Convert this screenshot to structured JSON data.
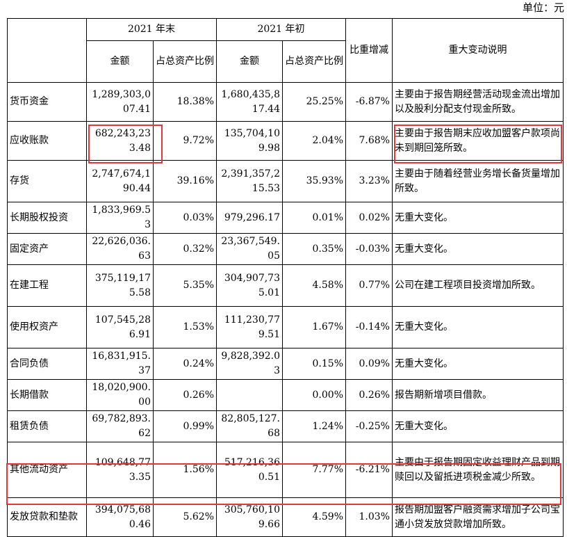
{
  "unit_label": "单位：元",
  "header": {
    "end_group": "2021 年末",
    "begin_group": "2021 年初",
    "amount": "金额",
    "ratio": "占总资产比例",
    "change": "比重增减",
    "note": "重大变动说明"
  },
  "rows": [
    {
      "item": "货币资金",
      "end_amount": "1,289,303,007.41",
      "end_ratio": "18.38%",
      "begin_amount": "1,680,435,817.44",
      "begin_ratio": "25.25%",
      "change": "-6.87%",
      "note": "主要由于报告期经营活动现金流出增加以及股利分配支付现金所致。"
    },
    {
      "item": "应收账款",
      "end_amount": "682,243,233.48",
      "end_ratio": "9.72%",
      "begin_amount": "135,704,109.98",
      "begin_ratio": "2.04%",
      "change": "7.68%",
      "note": "主要由于报告期末应收加盟客户款项尚未到期回笼所致。"
    },
    {
      "item": "存货",
      "end_amount": "2,747,674,190.44",
      "end_ratio": "39.16%",
      "begin_amount": "2,391,357,215.53",
      "begin_ratio": "35.93%",
      "change": "3.23%",
      "note": "主要由于随着经营业务增长备货量增加所致。"
    },
    {
      "item": "长期股权投资",
      "end_amount": "1,833,969.53",
      "end_ratio": "0.03%",
      "begin_amount": "979,296.17",
      "begin_ratio": "0.01%",
      "change": "0.02%",
      "note": "无重大变化。"
    },
    {
      "item": "固定资产",
      "end_amount": "22,626,036.63",
      "end_ratio": "0.32%",
      "begin_amount": "23,367,549.05",
      "begin_ratio": "0.35%",
      "change": "-0.03%",
      "note": "无重大变化。"
    },
    {
      "item": "在建工程",
      "end_amount": "375,119,175.58",
      "end_ratio": "5.35%",
      "begin_amount": "304,907,735.01",
      "begin_ratio": "4.58%",
      "change": "0.77%",
      "note": "公司在建工程项目投资增加所致。"
    },
    {
      "item": "使用权资产",
      "end_amount": "107,545,286.91",
      "end_ratio": "1.53%",
      "begin_amount": "111,230,779.51",
      "begin_ratio": "1.67%",
      "change": "-0.14%",
      "note": "无重大变化。"
    },
    {
      "item": "合同负债",
      "end_amount": "16,831,915.37",
      "end_ratio": "0.24%",
      "begin_amount": "9,828,392.03",
      "begin_ratio": "0.15%",
      "change": "0.09%",
      "note": "无重大变化。"
    },
    {
      "item": "长期借款",
      "end_amount": "18,020,900.00",
      "end_ratio": "0.26%",
      "begin_amount": "",
      "begin_ratio": "0.00%",
      "change": "0.26%",
      "note": "报告期新增项目借款。"
    },
    {
      "item": "租赁负债",
      "end_amount": "69,782,893.62",
      "end_ratio": "0.99%",
      "begin_amount": "82,805,127.68",
      "begin_ratio": "1.24%",
      "change": "-0.25%",
      "note": "无重大变化。"
    },
    {
      "item": "其他流动资产",
      "end_amount": "109,648,773.35",
      "end_ratio": "1.56%",
      "begin_amount": "517,216,360.51",
      "begin_ratio": "7.77%",
      "change": "-6.21%",
      "note": "主要由于报告期固定收益理财产品到期赎回以及留抵进项税金减少所致。"
    },
    {
      "item": "发放贷款和垫款",
      "end_amount": "394,075,680.46",
      "end_ratio": "5.62%",
      "begin_amount": "305,760,109.66",
      "begin_ratio": "4.59%",
      "change": "1.03%",
      "note": "报告期加盟客户融资需求增加子公司宝通小贷发放贷款增加所致。"
    }
  ]
}
